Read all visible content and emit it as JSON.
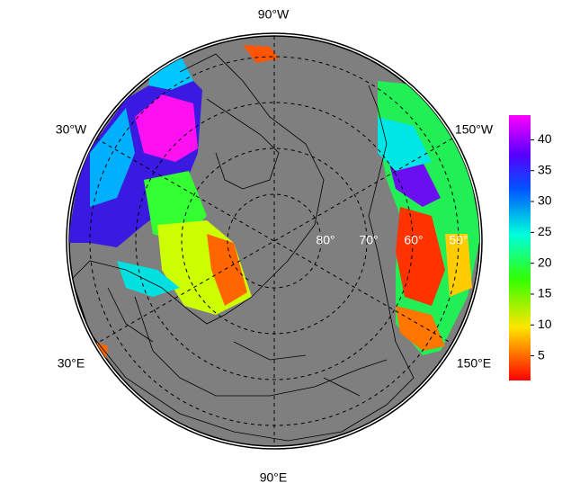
{
  "map": {
    "longitude_labels": [
      "90°W",
      "30°W",
      "150°W",
      "30°E",
      "150°E",
      "90°E"
    ],
    "latitude_labels": [
      "80°",
      "70°",
      "60°",
      "50°"
    ]
  },
  "colorbar": {
    "range": [
      1,
      44
    ],
    "ticks": [
      5,
      10,
      15,
      20,
      25,
      30,
      35,
      40
    ]
  }
}
